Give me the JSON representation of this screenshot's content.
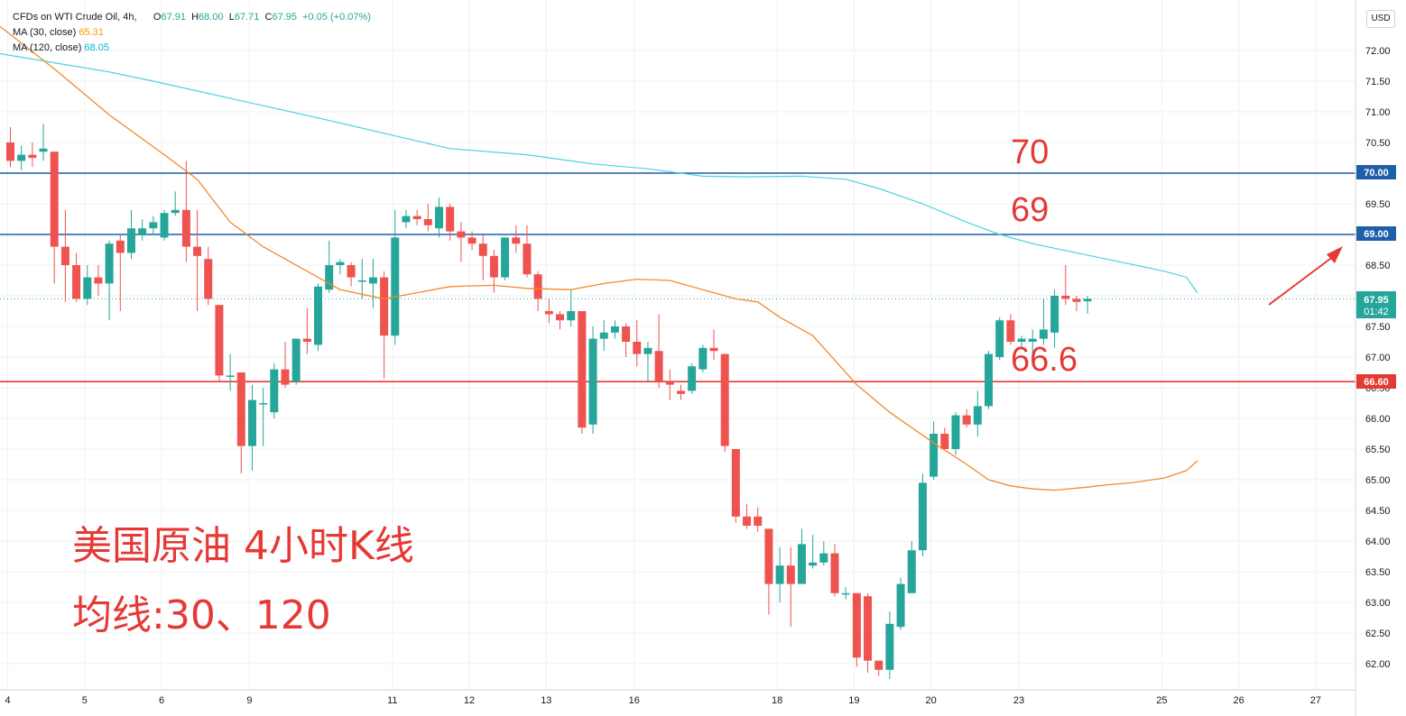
{
  "legend": {
    "symbol": "CFDs on WTI Crude Oil, 4h,",
    "o_label": "O",
    "o": "67.91",
    "h_label": "H",
    "h": "68.00",
    "l_label": "L",
    "l": "67.71",
    "c_label": "C",
    "c": "67.95",
    "change": "+0.05 (+0.07%)",
    "ma30_label": "MA (30, close)",
    "ma30_value": "65.31",
    "ma120_label": "MA (120, close)",
    "ma120_value": "68.05"
  },
  "currency": "USD",
  "annotations": {
    "level_70": "70",
    "level_69": "69",
    "level_666": "66.6",
    "title": "美国原油 4小时K线",
    "subtitle": "均线:30、120"
  },
  "price_tags": {
    "current_price": "67.95",
    "countdown": "01:42",
    "line_70": "70.00",
    "line_69": "69.00",
    "line_666": "66.60"
  },
  "colors": {
    "up": "#26a69a",
    "down": "#ef5350",
    "ma30": "#f5892b",
    "ma120": "#4dd0e1",
    "blue_line": "#1f5fa8",
    "red_line": "#e53935",
    "annotation": "#e53935",
    "grid": "#eef0f3"
  },
  "chart_data": {
    "type": "candlestick",
    "timeframe": "4h",
    "ylim": [
      61.6,
      72.6
    ],
    "y_ticks": [
      "62.00",
      "62.50",
      "63.00",
      "63.50",
      "64.00",
      "64.50",
      "65.00",
      "65.50",
      "66.00",
      "66.50",
      "67.00",
      "67.50",
      "68.00",
      "68.50",
      "69.00",
      "69.50",
      "70.00",
      "70.50",
      "71.00",
      "71.50",
      "72.00"
    ],
    "x_tick_labels": [
      {
        "label": "4",
        "bar": 0
      },
      {
        "label": "5",
        "bar": 7
      },
      {
        "label": "6",
        "bar": 14
      },
      {
        "label": "9",
        "bar": 22
      },
      {
        "label": "11",
        "bar": 35
      },
      {
        "label": "12",
        "bar": 42
      },
      {
        "label": "13",
        "bar": 49
      },
      {
        "label": "16",
        "bar": 57
      },
      {
        "label": "18",
        "bar": 70
      },
      {
        "label": "19",
        "bar": 77
      },
      {
        "label": "20",
        "bar": 84
      },
      {
        "label": "23",
        "bar": 92
      },
      {
        "label": "25",
        "bar": 105
      },
      {
        "label": "26",
        "bar": 112
      },
      {
        "label": "27",
        "bar": 119
      }
    ],
    "horizontal_lines": [
      {
        "value": 70.0,
        "color": "blue"
      },
      {
        "value": 69.0,
        "color": "blue"
      },
      {
        "value": 66.6,
        "color": "red"
      }
    ],
    "candles": [
      [
        70.5,
        70.2,
        70.75,
        70.1
      ],
      [
        70.2,
        70.3,
        70.45,
        70.05
      ],
      [
        70.3,
        70.25,
        70.5,
        70.1
      ],
      [
        70.35,
        70.4,
        70.8,
        70.2
      ],
      [
        70.35,
        68.8,
        70.35,
        68.2
      ],
      [
        68.8,
        68.5,
        69.4,
        67.9
      ],
      [
        68.5,
        67.95,
        68.7,
        67.9
      ],
      [
        67.95,
        68.3,
        68.5,
        67.85
      ],
      [
        68.3,
        68.2,
        68.5,
        68.0
      ],
      [
        68.2,
        68.85,
        68.9,
        67.6
      ],
      [
        68.9,
        68.7,
        69.0,
        67.75
      ],
      [
        68.7,
        69.1,
        69.4,
        68.6
      ],
      [
        69.0,
        69.1,
        69.25,
        68.9
      ],
      [
        69.1,
        69.2,
        69.3,
        69.0
      ],
      [
        68.95,
        69.35,
        69.4,
        68.9
      ],
      [
        69.35,
        69.4,
        69.7,
        69.3
      ],
      [
        69.4,
        68.8,
        70.2,
        68.55
      ],
      [
        68.8,
        68.65,
        69.4,
        67.75
      ],
      [
        68.6,
        67.95,
        68.8,
        67.85
      ],
      [
        67.85,
        66.7,
        67.85,
        66.6
      ],
      [
        66.7,
        66.7,
        67.05,
        66.45
      ],
      [
        66.75,
        65.55,
        66.75,
        65.1
      ],
      [
        65.55,
        66.3,
        66.55,
        65.15
      ],
      [
        66.25,
        66.25,
        66.5,
        65.55
      ],
      [
        66.1,
        66.8,
        66.9,
        66.0
      ],
      [
        66.8,
        66.55,
        67.25,
        66.5
      ],
      [
        66.6,
        67.3,
        67.3,
        66.55
      ],
      [
        67.3,
        67.25,
        67.8,
        67.05
      ],
      [
        67.2,
        68.15,
        68.2,
        67.1
      ],
      [
        68.1,
        68.5,
        68.9,
        68.05
      ],
      [
        68.5,
        68.55,
        68.6,
        68.35
      ],
      [
        68.5,
        68.3,
        68.55,
        68.15
      ],
      [
        68.25,
        68.25,
        68.6,
        67.95
      ],
      [
        68.2,
        68.3,
        68.6,
        67.8
      ],
      [
        68.3,
        67.35,
        68.4,
        66.65
      ],
      [
        67.35,
        68.95,
        69.4,
        67.2
      ],
      [
        69.2,
        69.3,
        69.4,
        69.1
      ],
      [
        69.3,
        69.25,
        69.4,
        69.15
      ],
      [
        69.25,
        69.15,
        69.5,
        69.05
      ],
      [
        69.1,
        69.45,
        69.6,
        68.95
      ],
      [
        69.45,
        69.05,
        69.5,
        68.9
      ],
      [
        69.05,
        68.95,
        69.2,
        68.55
      ],
      [
        68.95,
        68.85,
        69.05,
        68.75
      ],
      [
        68.85,
        68.65,
        69.0,
        68.25
      ],
      [
        68.65,
        68.3,
        68.75,
        68.05
      ],
      [
        68.3,
        68.95,
        68.95,
        68.25
      ],
      [
        68.95,
        68.85,
        69.15,
        68.7
      ],
      [
        68.85,
        68.35,
        69.15,
        68.3
      ],
      [
        68.35,
        67.95,
        68.4,
        67.75
      ],
      [
        67.75,
        67.7,
        67.95,
        67.55
      ],
      [
        67.7,
        67.6,
        67.75,
        67.45
      ],
      [
        67.6,
        67.75,
        68.1,
        67.5
      ],
      [
        67.75,
        65.85,
        67.75,
        65.75
      ],
      [
        65.9,
        67.3,
        67.5,
        65.75
      ],
      [
        67.3,
        67.4,
        67.6,
        67.1
      ],
      [
        67.4,
        67.5,
        67.6,
        67.3
      ],
      [
        67.5,
        67.25,
        67.55,
        67.0
      ],
      [
        67.25,
        67.05,
        67.6,
        66.85
      ],
      [
        67.05,
        67.15,
        67.25,
        66.6
      ],
      [
        67.1,
        66.6,
        67.7,
        66.5
      ],
      [
        66.6,
        66.55,
        66.8,
        66.3
      ],
      [
        66.45,
        66.4,
        66.55,
        66.3
      ],
      [
        66.45,
        66.85,
        66.9,
        66.4
      ],
      [
        66.8,
        67.15,
        67.2,
        66.75
      ],
      [
        67.15,
        67.1,
        67.45,
        66.95
      ],
      [
        67.05,
        65.55,
        67.05,
        65.45
      ],
      [
        65.5,
        64.4,
        65.5,
        64.3
      ],
      [
        64.4,
        64.25,
        64.6,
        64.2
      ],
      [
        64.4,
        64.25,
        64.55,
        64.15
      ],
      [
        64.2,
        63.3,
        64.2,
        62.8
      ],
      [
        63.3,
        63.6,
        63.9,
        63.0
      ],
      [
        63.6,
        63.3,
        63.9,
        62.6
      ],
      [
        63.3,
        63.95,
        64.2,
        63.3
      ],
      [
        63.6,
        63.65,
        64.1,
        63.55
      ],
      [
        63.65,
        63.8,
        64.0,
        63.6
      ],
      [
        63.8,
        63.15,
        63.95,
        63.1
      ],
      [
        63.15,
        63.15,
        63.25,
        63.05
      ],
      [
        63.15,
        62.1,
        63.15,
        61.95
      ],
      [
        63.1,
        62.05,
        63.15,
        61.85
      ],
      [
        62.05,
        61.9,
        62.05,
        61.8
      ],
      [
        61.9,
        62.65,
        62.85,
        61.75
      ],
      [
        62.6,
        63.3,
        63.4,
        62.55
      ],
      [
        63.15,
        63.85,
        64.0,
        63.15
      ],
      [
        63.85,
        64.95,
        65.1,
        63.75
      ],
      [
        65.05,
        65.75,
        65.95,
        65.0
      ],
      [
        65.75,
        65.5,
        65.85,
        65.5
      ],
      [
        65.5,
        66.05,
        66.1,
        65.4
      ],
      [
        66.05,
        65.9,
        66.15,
        65.85
      ],
      [
        65.9,
        66.2,
        66.45,
        65.7
      ],
      [
        66.2,
        67.05,
        67.1,
        66.15
      ],
      [
        67.0,
        67.6,
        67.65,
        66.95
      ],
      [
        67.6,
        67.25,
        67.7,
        67.2
      ],
      [
        67.25,
        67.3,
        67.35,
        67.15
      ],
      [
        67.25,
        67.3,
        67.45,
        66.95
      ],
      [
        67.3,
        67.45,
        67.95,
        67.2
      ],
      [
        67.4,
        68.0,
        68.1,
        67.15
      ],
      [
        68.0,
        67.95,
        68.5,
        67.85
      ],
      [
        67.95,
        67.9,
        68.0,
        67.75
      ],
      [
        67.91,
        67.95,
        68.0,
        67.71
      ]
    ],
    "ma30": [
      [
        -1,
        72.4
      ],
      [
        4,
        71.7
      ],
      [
        9,
        70.95
      ],
      [
        14,
        70.3
      ],
      [
        17,
        69.9
      ],
      [
        20,
        69.2
      ],
      [
        23,
        68.8
      ],
      [
        27,
        68.4
      ],
      [
        30,
        68.1
      ],
      [
        34,
        67.95
      ],
      [
        37,
        68.05
      ],
      [
        40,
        68.15
      ],
      [
        44,
        68.17
      ],
      [
        47,
        68.12
      ],
      [
        51,
        68.1
      ],
      [
        54,
        68.2
      ],
      [
        57,
        68.27
      ],
      [
        60,
        68.25
      ],
      [
        63,
        68.1
      ],
      [
        66,
        67.95
      ],
      [
        68,
        67.9
      ],
      [
        70,
        67.65
      ],
      [
        73,
        67.35
      ],
      [
        75,
        66.95
      ],
      [
        77,
        66.55
      ],
      [
        80,
        66.1
      ],
      [
        84,
        65.6
      ],
      [
        87,
        65.25
      ],
      [
        89,
        65.0
      ],
      [
        91,
        64.9
      ],
      [
        93,
        64.85
      ],
      [
        95,
        64.83
      ],
      [
        98,
        64.88
      ],
      [
        100,
        64.92
      ],
      [
        102,
        64.95
      ],
      [
        105,
        65.03
      ],
      [
        107,
        65.15
      ],
      [
        108,
        65.31
      ]
    ],
    "ma120": [
      [
        -1,
        71.95
      ],
      [
        4,
        71.8
      ],
      [
        9,
        71.65
      ],
      [
        13,
        71.5
      ],
      [
        18,
        71.3
      ],
      [
        23,
        71.1
      ],
      [
        28,
        70.9
      ],
      [
        34,
        70.65
      ],
      [
        40,
        70.4
      ],
      [
        47,
        70.3
      ],
      [
        53,
        70.15
      ],
      [
        58,
        70.07
      ],
      [
        63,
        69.95
      ],
      [
        67,
        69.94
      ],
      [
        72,
        69.95
      ],
      [
        76,
        69.9
      ],
      [
        79,
        69.75
      ],
      [
        83,
        69.5
      ],
      [
        87,
        69.2
      ],
      [
        90,
        69.0
      ],
      [
        93,
        68.85
      ],
      [
        97,
        68.7
      ],
      [
        101,
        68.55
      ],
      [
        105,
        68.4
      ],
      [
        107,
        68.3
      ],
      [
        108,
        68.05
      ]
    ]
  }
}
